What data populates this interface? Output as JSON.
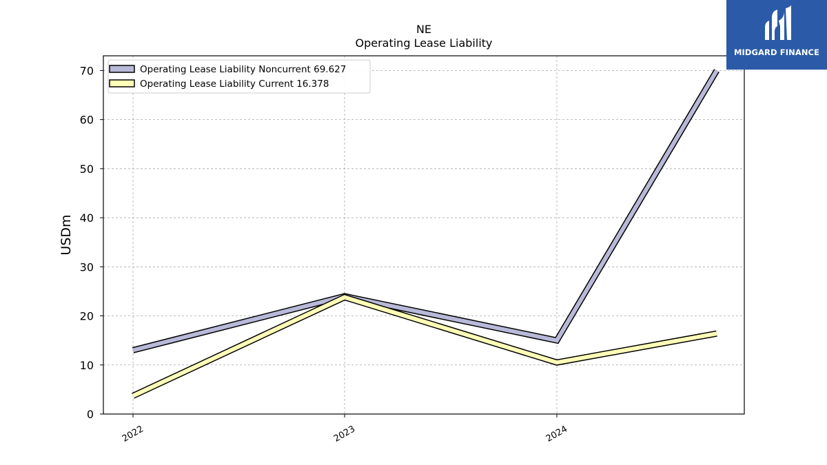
{
  "chart_data": {
    "type": "line",
    "title": "NE",
    "subtitle": "Operating Lease Liability",
    "xlabel": "",
    "ylabel": "USDm",
    "x": [
      "2022",
      "2023",
      "2024",
      ""
    ],
    "tick_labels": [
      "2022",
      "2023",
      "2024"
    ],
    "ylim": [
      0,
      73
    ],
    "yticks": [
      0,
      10,
      20,
      30,
      40,
      50,
      60,
      70
    ],
    "grid": true,
    "legend_position": "top-left",
    "series": [
      {
        "name": "Operating Lease Liability Noncurrent  69.627",
        "values": [
          13.0,
          24.0,
          15.0,
          70.0
        ],
        "color": "#b8b8d8"
      },
      {
        "name": "Operating Lease Liability Current  16.378",
        "values": [
          3.7,
          23.8,
          10.5,
          16.4
        ],
        "color": "#ffffb8"
      }
    ]
  },
  "logo": {
    "text": "MIDGARD FINANCE",
    "color": "#2b5aa8"
  }
}
